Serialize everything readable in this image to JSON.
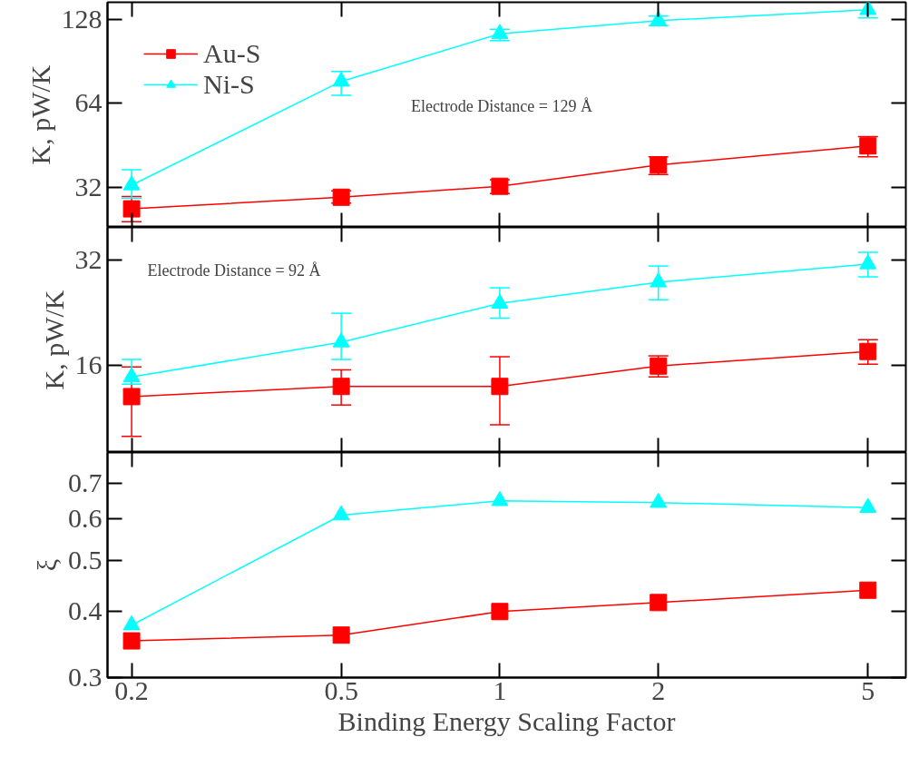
{
  "chart_data": [
    {
      "type": "line",
      "ylabel": "K, pW/K",
      "x": [
        0.2,
        0.5,
        1,
        2,
        5
      ],
      "log": "xy",
      "xlim": [
        0.18,
        5.9
      ],
      "xticks": [
        0.2,
        0.5,
        1,
        2,
        5
      ],
      "ylim": [
        22.9,
        148
      ],
      "yticks": [
        32,
        64,
        128
      ],
      "tick_labels": "y",
      "legend": "top left",
      "annotations": [
        "Electrode Distance = 129 Å"
      ],
      "series": [
        {
          "name": "Au-S",
          "color": "#ff0000",
          "marker": "square",
          "values": [
            26.7,
            29.4,
            32.2,
            38.4,
            45
          ],
          "errors": [
            [
              24,
              29.6
            ],
            [
              28,
              31
            ],
            [
              30.3,
              34
            ],
            [
              35.5,
              41.1
            ],
            [
              41.1,
              48.6
            ]
          ]
        },
        {
          "name": "Ni-S",
          "color": "#00ffff",
          "marker": "triangle",
          "values": [
            32.5,
            76.8,
            114,
            127,
            139
          ],
          "errors": [
            [
              29.2,
              36.9
            ],
            [
              68.5,
              83.4
            ],
            [
              107.6,
              118.4
            ],
            [
              122,
              132
            ],
            [
              130,
              149
            ]
          ]
        }
      ]
    },
    {
      "type": "line",
      "ylabel": "K, pW/K",
      "x": [
        0.2,
        0.5,
        1,
        2,
        5
      ],
      "log": "xy",
      "xlim": [
        0.18,
        5.9
      ],
      "xticks": [
        0.2,
        0.5,
        1,
        2,
        5
      ],
      "ylim": [
        9,
        39.6
      ],
      "yticks": [
        16,
        32
      ],
      "tick_labels": "y",
      "annotations": [
        "Electrode Distance = 92 Å"
      ],
      "series": [
        {
          "color": "#ff0000",
          "marker": "square",
          "values": [
            13.0,
            13.9,
            13.9,
            15.9,
            17.5
          ],
          "errors": [
            [
              10.0,
              15.8
            ],
            [
              12.3,
              15.5
            ],
            [
              10.8,
              16.9
            ],
            [
              14.8,
              17
            ],
            [
              16.1,
              18.9
            ]
          ]
        },
        {
          "color": "#00ffff",
          "marker": "triangle",
          "values": [
            14.8,
            18.6,
            24,
            27.6,
            31.1
          ],
          "errors": [
            [
              14.1,
              16.6
            ],
            [
              16.6,
              22.5
            ],
            [
              21.8,
              26.6
            ],
            [
              24.6,
              30.7
            ],
            [
              28.6,
              33.6
            ]
          ]
        }
      ]
    },
    {
      "type": "line",
      "ylabel": "ξ",
      "xlabel": "Binding Energy Scaling Factor",
      "x": [
        0.2,
        0.5,
        1,
        2,
        5
      ],
      "log": "xy",
      "xlim": [
        0.18,
        5.9
      ],
      "xticks": [
        0.2,
        0.5,
        1,
        2,
        5
      ],
      "ylim": [
        0.3,
        0.8
      ],
      "yticks": [
        0.3,
        0.4,
        0.5,
        0.6,
        0.7
      ],
      "series": [
        {
          "color": "#ff0000",
          "marker": "square",
          "values": [
            0.352,
            0.361,
            0.4,
            0.416,
            0.439
          ]
        },
        {
          "color": "#00ffff",
          "marker": "triangle",
          "values": [
            0.377,
            0.609,
            0.648,
            0.643,
            0.629
          ]
        }
      ]
    }
  ]
}
